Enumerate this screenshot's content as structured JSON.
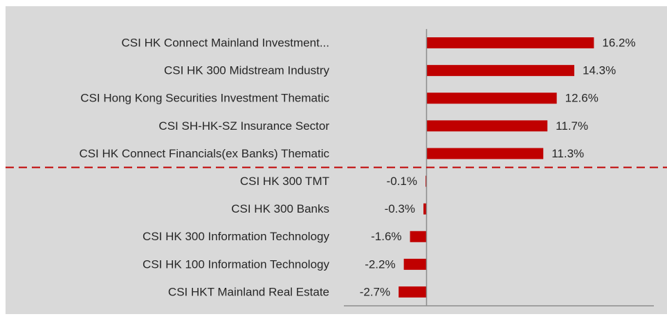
{
  "chart_data": {
    "type": "bar",
    "orientation": "horizontal",
    "categories": [
      "CSI HK Connect Mainland Investment...",
      "CSI HK 300 Midstream Industry",
      "CSI Hong Kong Securities Investment Thematic",
      "CSI SH-HK-SZ Insurance Sector",
      "CSI HK Connect Financials(ex Banks) Thematic",
      "CSI HK 300 TMT",
      "CSI HK 300 Banks",
      "CSI HK 300 Information Technology",
      "CSI HK 100 Information Technology",
      "CSI HKT Mainland Real Estate"
    ],
    "values": [
      16.2,
      14.3,
      12.6,
      11.7,
      11.3,
      -0.1,
      -0.3,
      -1.6,
      -2.2,
      -2.7
    ],
    "value_labels": [
      "16.2%",
      "14.3%",
      "12.6%",
      "11.7%",
      "11.3%",
      "-0.1%",
      "-0.3%",
      "-1.6%",
      "-2.2%",
      "-2.7%"
    ],
    "color": "#c00000",
    "xlim": [
      -8,
      22
    ]
  }
}
